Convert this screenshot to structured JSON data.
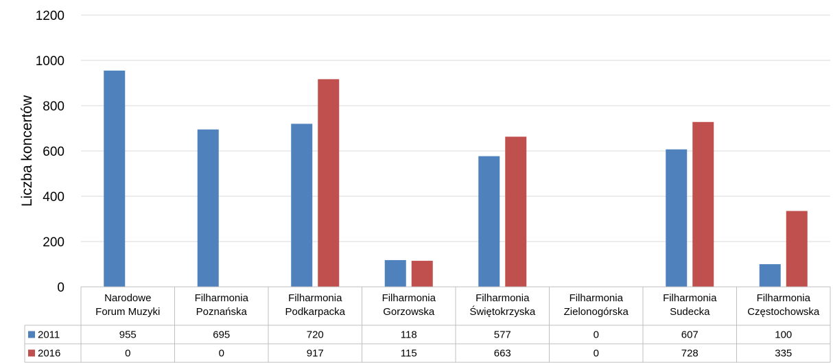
{
  "chart_data": {
    "type": "bar",
    "title": "",
    "ylabel": "Liczba koncertów",
    "ylim": [
      0,
      1200
    ],
    "yticks": [
      0,
      200,
      400,
      600,
      800,
      1000,
      1200
    ],
    "grid": true,
    "legend": "data-table",
    "categories": [
      [
        "Narodowe",
        "Forum Muzyki"
      ],
      [
        "Filharmonia",
        "Poznańska"
      ],
      [
        "Filharmonia",
        "Podkarpacka"
      ],
      [
        "Filharmonia",
        "Gorzowska"
      ],
      [
        "Filharmonia",
        "Świętokrzyska"
      ],
      [
        "Filharmonia",
        "Zielonogórska"
      ],
      [
        "Filharmonia",
        "Sudecka"
      ],
      [
        "Filharmonia",
        "Częstochowska"
      ]
    ],
    "series": [
      {
        "name": "2011",
        "color": "#4f81bd",
        "values": [
          955,
          695,
          720,
          118,
          577,
          0,
          607,
          100
        ]
      },
      {
        "name": "2016",
        "color": "#c0504d",
        "values": [
          0,
          0,
          917,
          115,
          663,
          0,
          728,
          335
        ]
      }
    ]
  }
}
